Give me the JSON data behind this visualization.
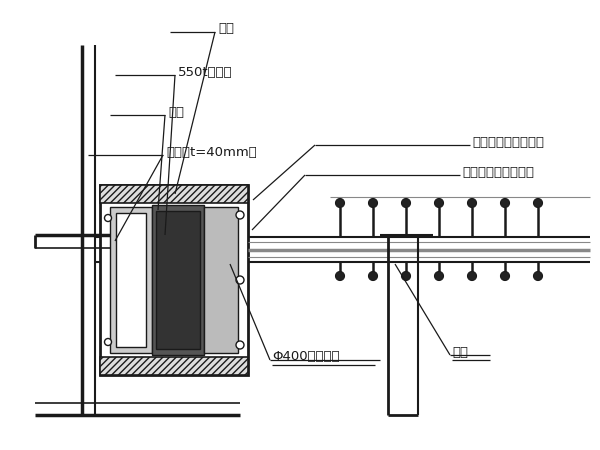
{
  "bg_color": "#ffffff",
  "line_color": "#1a1a1a",
  "gray_color": "#888888",
  "dark_gray": "#333333",
  "labels": {
    "tuijiao": "撑脚",
    "jack": "550t千斤顶",
    "dianban": "垫板",
    "ganban": "钢板（t=40mm）",
    "bianjing": "斜拉索施工用变径头",
    "kaiheban": "斜拉索施工用开合板",
    "steel_pipe": "Φ400无缝钢管",
    "niutui": "牛腿"
  },
  "fig_width": 6.0,
  "fig_height": 4.5,
  "dpi": 100
}
